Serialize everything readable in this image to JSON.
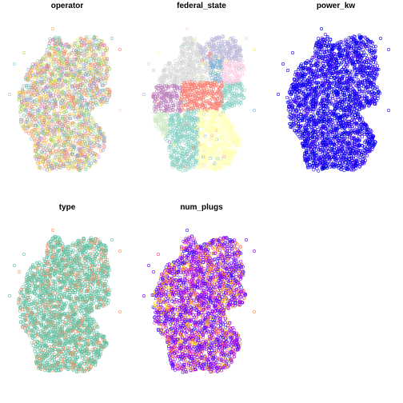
{
  "chart_data": [
    {
      "type": "scatter",
      "title": "operator",
      "color_mode": "categorical",
      "palette": [
        "#8dd3c7",
        "#ffffb3",
        "#bebada",
        "#fb8072",
        "#80b1d3",
        "#fdb462",
        "#b3de69",
        "#fccde5",
        "#d9d9d9",
        "#bc80bd",
        "#ccebc5",
        "#ffed6f",
        "#66c2a5",
        "#fc8d62",
        "#8da0cb",
        "#e78ac3",
        "#a6d854",
        "#ffd92f"
      ],
      "point_count": 2600,
      "legend": "none",
      "grid": false
    },
    {
      "type": "scatter",
      "title": "federal_state",
      "color_mode": "region",
      "regions": [
        {
          "region": "Schleswig-Holstein",
          "color": "#d9d9d9"
        },
        {
          "region": "Hamburg",
          "color": "#8dd3c7"
        },
        {
          "region": "Mecklenburg-Vorpommern",
          "color": "#bebada"
        },
        {
          "region": "Bremen",
          "color": "#ffed6f"
        },
        {
          "region": "Niedersachsen",
          "color": "#d9d9d9"
        },
        {
          "region": "Brandenburg",
          "color": "#fccde5"
        },
        {
          "region": "Berlin",
          "color": "#ffffb3"
        },
        {
          "region": "Sachsen-Anhalt",
          "color": "#80b1d3"
        },
        {
          "region": "Nordrhein-Westfalen",
          "color": "#bc80bd"
        },
        {
          "region": "Hessen",
          "color": "#fb8072"
        },
        {
          "region": "Thüringen",
          "color": "#fb8072"
        },
        {
          "region": "Sachsen",
          "color": "#8dd3c7"
        },
        {
          "region": "Rheinland-Pfalz",
          "color": "#ccebc5"
        },
        {
          "region": "Saarland",
          "color": "#ffed6f"
        },
        {
          "region": "Baden-Württemberg",
          "color": "#8dd3c7"
        },
        {
          "region": "Bayern",
          "color": "#ffffb3"
        }
      ],
      "point_count": 2600,
      "legend": "none",
      "grid": false
    },
    {
      "type": "scatter",
      "title": "power_kw",
      "color_mode": "continuous",
      "colors": [
        "#0000cd",
        "#0000ff",
        "#1a00ff",
        "#4400ff"
      ],
      "point_count": 2600,
      "legend": "none",
      "grid": false
    },
    {
      "type": "scatter",
      "title": "type",
      "color_mode": "categorical",
      "palette": [
        "#66c2a5",
        "#fc8d62"
      ],
      "weights": [
        0.82,
        0.18
      ],
      "point_count": 2600,
      "legend": "none",
      "grid": false
    },
    {
      "type": "scatter",
      "title": "num_plugs",
      "color_mode": "continuous",
      "colors": [
        "#8000ff",
        "#8000ff",
        "#8000ff",
        "#a000ff",
        "#6a00ff",
        "#1a1aff",
        "#ff40a0",
        "#ff8c40",
        "#ffd000"
      ],
      "point_count": 2600,
      "legend": "none",
      "grid": false
    }
  ]
}
